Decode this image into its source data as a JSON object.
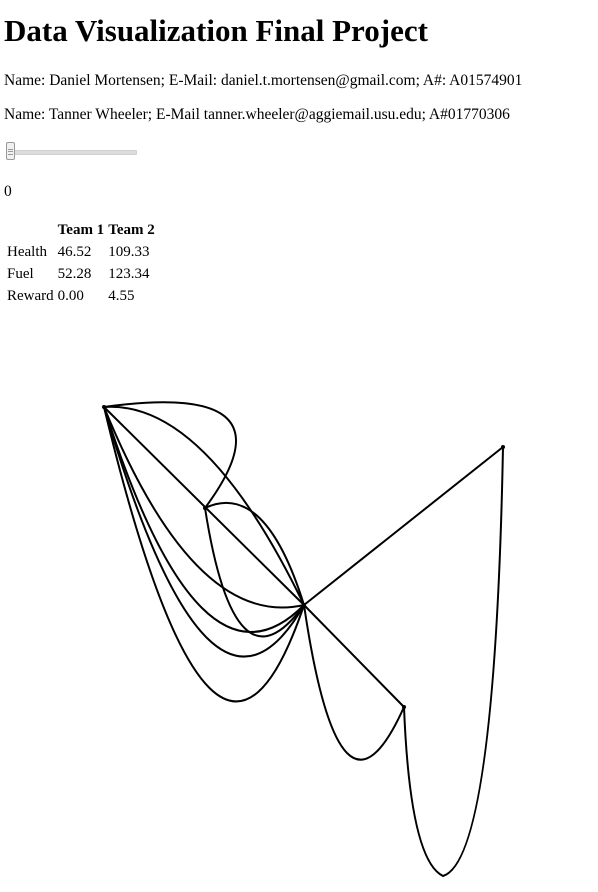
{
  "page": {
    "title": "Data Visualization Final Project",
    "authors": [
      "Name: Daniel Mortensen; E-Mail: daniel.t.mortensen@gmail.com; A#: A01574901",
      "Name: Tanner Wheeler; E-Mail tanner.wheeler@aggiemail.usu.edu; A#01770306"
    ]
  },
  "slider": {
    "value": "0",
    "position": 0
  },
  "stats_table": {
    "columns": [
      "",
      "Team 1",
      "Team 2"
    ],
    "rows": [
      {
        "label": "Health",
        "team1": "46.52",
        "team2": "109.33"
      },
      {
        "label": "Fuel",
        "team1": "52.28",
        "team2": "123.34"
      },
      {
        "label": "Reward",
        "team1": "0.00",
        "team2": "4.55"
      }
    ]
  },
  "graph": {
    "stroke_color": "#000000"
  }
}
